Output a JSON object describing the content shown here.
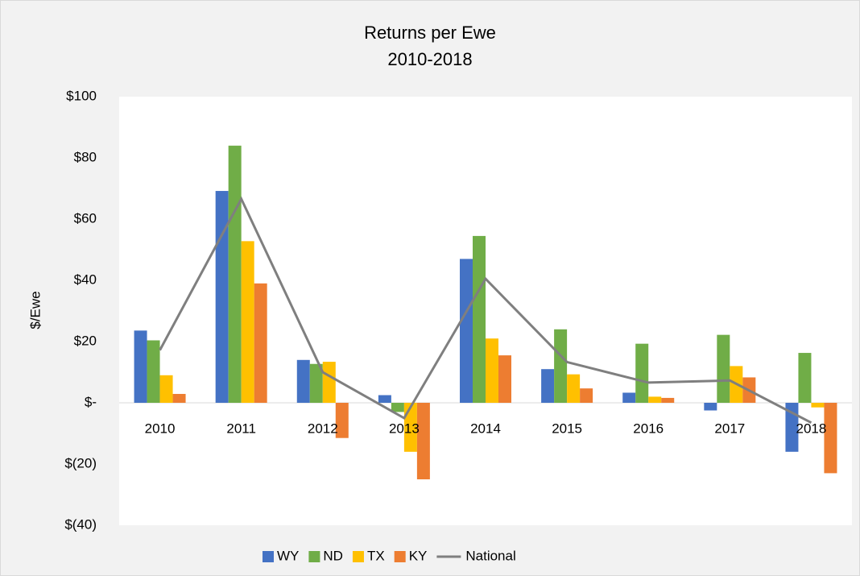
{
  "chart_data": {
    "type": "bar",
    "title": "Returns per Ewe",
    "subtitle": "2010-2018",
    "y_label": "$/Ewe",
    "categories": [
      "2010",
      "2011",
      "2012",
      "2013",
      "2014",
      "2015",
      "2016",
      "2017",
      "2018"
    ],
    "series": [
      {
        "name": "WY",
        "color": "#4472c4",
        "values": [
          23.6,
          69.2,
          14,
          2.5,
          47,
          11,
          3.3,
          -2.5,
          -16
        ]
      },
      {
        "name": "ND",
        "color": "#70ad47",
        "values": [
          20.4,
          84,
          12.7,
          -3,
          54.5,
          24,
          19.3,
          22.2,
          16.3
        ]
      },
      {
        "name": "TX",
        "color": "#ffc000",
        "values": [
          9,
          52.8,
          13.4,
          -16,
          21,
          9.3,
          2,
          12,
          -1.5
        ]
      },
      {
        "name": "KY",
        "color": "#ed7d31",
        "values": [
          2.9,
          39,
          -11.5,
          -25,
          15.5,
          4.7,
          1.6,
          8.3,
          -23
        ]
      },
      {
        "name": "National",
        "color": "#7f7f7f",
        "type": "line",
        "values": [
          17.2,
          66.6,
          10,
          -5,
          40.5,
          13.3,
          6.6,
          7.3,
          -6.5
        ]
      }
    ],
    "ylim": [
      -40,
      100
    ],
    "yticks": [
      {
        "value": 100,
        "label": "$100"
      },
      {
        "value": 80,
        "label": "$80"
      },
      {
        "value": 60,
        "label": "$60"
      },
      {
        "value": 40,
        "label": "$40"
      },
      {
        "value": 20,
        "label": "$20"
      },
      {
        "value": 0,
        "label": "$-"
      },
      {
        "value": -20,
        "label": "$(20)"
      },
      {
        "value": -40,
        "label": "$(40)"
      }
    ],
    "grid": false,
    "legend": "bottom"
  }
}
